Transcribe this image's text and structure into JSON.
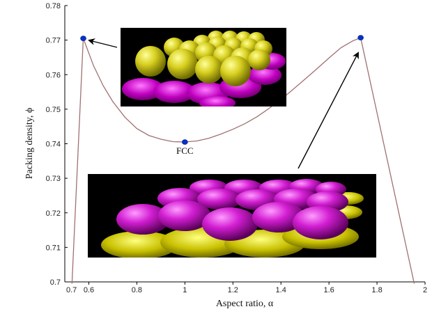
{
  "chart_data": {
    "type": "line",
    "title": "",
    "xlabel": "Aspect ratio, α",
    "ylabel": "Packing density, ϕ",
    "xlim": [
      0.5,
      2.0
    ],
    "ylim": [
      0.7,
      0.78
    ],
    "grid": false,
    "x_ticks": [
      0.6,
      0.8,
      1.0,
      1.2,
      1.4,
      1.6,
      1.8,
      2.0
    ],
    "x_tick_labels": [
      "0.6",
      "0.8",
      "1",
      "1.2",
      "1.4",
      "1.6",
      "1.8",
      "2"
    ],
    "x_origin_label": "0.7",
    "y_ticks": [
      0.71,
      0.72,
      0.73,
      0.74,
      0.75,
      0.76,
      0.77,
      0.78
    ],
    "y_tick_labels": [
      "0.71",
      "0.72",
      "0.73",
      "0.74",
      "0.75",
      "0.76",
      "0.77",
      "0.78"
    ],
    "y_origin_label": "0.7",
    "series": [
      {
        "x": [
          0.53,
          0.577,
          0.62,
          0.66,
          0.7,
          0.75,
          0.8,
          0.85,
          0.9,
          0.95,
          1.0,
          1.05,
          1.1,
          1.15,
          1.2,
          1.25,
          1.3,
          1.35,
          1.4,
          1.45,
          1.5,
          1.55,
          1.6,
          1.65,
          1.7,
          1.732,
          1.955
        ],
        "y": [
          0.6995,
          0.7705,
          0.7625,
          0.7568,
          0.7522,
          0.7477,
          0.7444,
          0.7424,
          0.7413,
          0.7406,
          0.7405,
          0.7408,
          0.7416,
          0.7428,
          0.7442,
          0.7458,
          0.7478,
          0.7502,
          0.7528,
          0.7557,
          0.7587,
          0.7617,
          0.7648,
          0.7678,
          0.7698,
          0.7707,
          0.6995
        ],
        "color": "#a07070"
      }
    ],
    "markers": [
      {
        "x": 0.577,
        "y": 0.7705,
        "color": "#0033cc"
      },
      {
        "x": 1.0,
        "y": 0.7405,
        "color": "#0033cc",
        "label": "FCC"
      },
      {
        "x": 1.732,
        "y": 0.7707,
        "color": "#0033cc"
      }
    ],
    "images": [
      {
        "description": "Crystal lattice of yellow and magenta ellipsoids (oblate configuration)"
      },
      {
        "description": "Crystal lattice of magenta and yellow ellipsoids (prolate configuration)"
      }
    ]
  }
}
